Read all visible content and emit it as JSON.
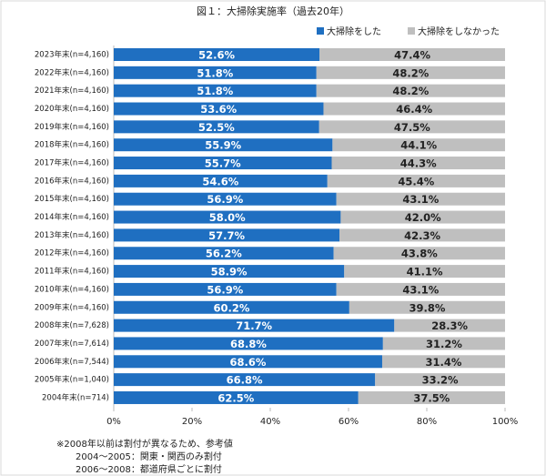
{
  "chart_data": {
    "type": "stacked-bar-horizontal",
    "title": "図１：大掃除実施率（過去20年）",
    "categories": [
      "2023年末(n=4,160)",
      "2022年末(n=4,160)",
      "2021年末(n=4,160)",
      "2020年末(n=4,160)",
      "2019年末(n=4,160)",
      "2018年末(n=4,160)",
      "2017年末(n=4,160)",
      "2016年末(n=4,160)",
      "2015年末(n=4,160)",
      "2014年末(n=4,160)",
      "2013年末(n=4,160)",
      "2012年末(n=4,160)",
      "2011年末(n=4,160)",
      "2010年末(n=4,160)",
      "2009年末(n=4,160)",
      "2008年末(n=7,628)",
      "2007年末(n=7,614)",
      "2006年末(n=7,544)",
      "2005年末(n=1,040)",
      "2004年末(n=714)"
    ],
    "series": [
      {
        "name": "大掃除をした",
        "color": "#1f6fc1",
        "label_color": "#ffffff",
        "values": [
          52.6,
          51.8,
          51.8,
          53.6,
          52.5,
          55.9,
          55.7,
          54.6,
          56.9,
          58.0,
          57.7,
          56.2,
          58.9,
          56.9,
          60.2,
          71.7,
          68.8,
          68.6,
          66.8,
          62.5
        ],
        "value_labels": [
          "52.6%",
          "51.8%",
          "51.8%",
          "53.6%",
          "52.5%",
          "55.9%",
          "55.7%",
          "54.6%",
          "56.9%",
          "58.0%",
          "57.7%",
          "56.2%",
          "58.9%",
          "56.9%",
          "60.2%",
          "71.7%",
          "68.8%",
          "68.6%",
          "66.8%",
          "62.5%"
        ]
      },
      {
        "name": "大掃除をしなかった",
        "color": "#bfbfbf",
        "label_color": "#222222",
        "values": [
          47.4,
          48.2,
          48.2,
          46.4,
          47.5,
          44.1,
          44.3,
          45.4,
          43.1,
          42.0,
          42.3,
          43.8,
          41.1,
          43.1,
          39.8,
          28.3,
          31.2,
          31.4,
          33.2,
          37.5
        ],
        "value_labels": [
          "47.4%",
          "48.2%",
          "48.2%",
          "46.4%",
          "47.5%",
          "44.1%",
          "44.3%",
          "45.4%",
          "43.1%",
          "42.0%",
          "42.3%",
          "43.8%",
          "41.1%",
          "43.1%",
          "39.8%",
          "28.3%",
          "31.2%",
          "31.4%",
          "33.2%",
          "37.5%"
        ]
      }
    ],
    "xlim": [
      0,
      100
    ],
    "xticks": [
      {
        "value": 0,
        "label": "0%"
      },
      {
        "value": 20,
        "label": "20%"
      },
      {
        "value": 40,
        "label": "40%"
      },
      {
        "value": 60,
        "label": "60%"
      },
      {
        "value": 80,
        "label": "80%"
      },
      {
        "value": 100,
        "label": "100%"
      }
    ],
    "notes": [
      "※2008年以前は割付が異なるため、参考値",
      "2004～2005：関東・関西のみ割付",
      "2006～2008：都道府県ごとに割付"
    ]
  }
}
